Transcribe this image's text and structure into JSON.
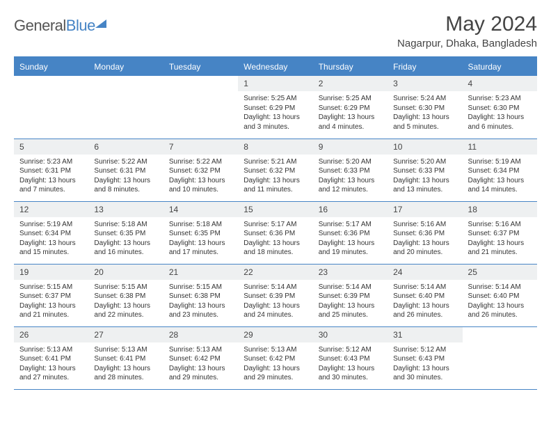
{
  "brand": {
    "part1": "General",
    "part2": "Blue"
  },
  "title": "May 2024",
  "location": "Nagarpur, Dhaka, Bangladesh",
  "colors": {
    "accent": "#4684c5",
    "header_bg": "#4684c5",
    "daybar_bg": "#eef0f1",
    "text": "#333333"
  },
  "weekdays": [
    "Sunday",
    "Monday",
    "Tuesday",
    "Wednesday",
    "Thursday",
    "Friday",
    "Saturday"
  ],
  "weeks": [
    [
      null,
      null,
      null,
      {
        "n": "1",
        "sunrise": "5:25 AM",
        "sunset": "6:29 PM",
        "daylight": "13 hours and 3 minutes."
      },
      {
        "n": "2",
        "sunrise": "5:25 AM",
        "sunset": "6:29 PM",
        "daylight": "13 hours and 4 minutes."
      },
      {
        "n": "3",
        "sunrise": "5:24 AM",
        "sunset": "6:30 PM",
        "daylight": "13 hours and 5 minutes."
      },
      {
        "n": "4",
        "sunrise": "5:23 AM",
        "sunset": "6:30 PM",
        "daylight": "13 hours and 6 minutes."
      }
    ],
    [
      {
        "n": "5",
        "sunrise": "5:23 AM",
        "sunset": "6:31 PM",
        "daylight": "13 hours and 7 minutes."
      },
      {
        "n": "6",
        "sunrise": "5:22 AM",
        "sunset": "6:31 PM",
        "daylight": "13 hours and 8 minutes."
      },
      {
        "n": "7",
        "sunrise": "5:22 AM",
        "sunset": "6:32 PM",
        "daylight": "13 hours and 10 minutes."
      },
      {
        "n": "8",
        "sunrise": "5:21 AM",
        "sunset": "6:32 PM",
        "daylight": "13 hours and 11 minutes."
      },
      {
        "n": "9",
        "sunrise": "5:20 AM",
        "sunset": "6:33 PM",
        "daylight": "13 hours and 12 minutes."
      },
      {
        "n": "10",
        "sunrise": "5:20 AM",
        "sunset": "6:33 PM",
        "daylight": "13 hours and 13 minutes."
      },
      {
        "n": "11",
        "sunrise": "5:19 AM",
        "sunset": "6:34 PM",
        "daylight": "13 hours and 14 minutes."
      }
    ],
    [
      {
        "n": "12",
        "sunrise": "5:19 AM",
        "sunset": "6:34 PM",
        "daylight": "13 hours and 15 minutes."
      },
      {
        "n": "13",
        "sunrise": "5:18 AM",
        "sunset": "6:35 PM",
        "daylight": "13 hours and 16 minutes."
      },
      {
        "n": "14",
        "sunrise": "5:18 AM",
        "sunset": "6:35 PM",
        "daylight": "13 hours and 17 minutes."
      },
      {
        "n": "15",
        "sunrise": "5:17 AM",
        "sunset": "6:36 PM",
        "daylight": "13 hours and 18 minutes."
      },
      {
        "n": "16",
        "sunrise": "5:17 AM",
        "sunset": "6:36 PM",
        "daylight": "13 hours and 19 minutes."
      },
      {
        "n": "17",
        "sunrise": "5:16 AM",
        "sunset": "6:36 PM",
        "daylight": "13 hours and 20 minutes."
      },
      {
        "n": "18",
        "sunrise": "5:16 AM",
        "sunset": "6:37 PM",
        "daylight": "13 hours and 21 minutes."
      }
    ],
    [
      {
        "n": "19",
        "sunrise": "5:15 AM",
        "sunset": "6:37 PM",
        "daylight": "13 hours and 21 minutes."
      },
      {
        "n": "20",
        "sunrise": "5:15 AM",
        "sunset": "6:38 PM",
        "daylight": "13 hours and 22 minutes."
      },
      {
        "n": "21",
        "sunrise": "5:15 AM",
        "sunset": "6:38 PM",
        "daylight": "13 hours and 23 minutes."
      },
      {
        "n": "22",
        "sunrise": "5:14 AM",
        "sunset": "6:39 PM",
        "daylight": "13 hours and 24 minutes."
      },
      {
        "n": "23",
        "sunrise": "5:14 AM",
        "sunset": "6:39 PM",
        "daylight": "13 hours and 25 minutes."
      },
      {
        "n": "24",
        "sunrise": "5:14 AM",
        "sunset": "6:40 PM",
        "daylight": "13 hours and 26 minutes."
      },
      {
        "n": "25",
        "sunrise": "5:14 AM",
        "sunset": "6:40 PM",
        "daylight": "13 hours and 26 minutes."
      }
    ],
    [
      {
        "n": "26",
        "sunrise": "5:13 AM",
        "sunset": "6:41 PM",
        "daylight": "13 hours and 27 minutes."
      },
      {
        "n": "27",
        "sunrise": "5:13 AM",
        "sunset": "6:41 PM",
        "daylight": "13 hours and 28 minutes."
      },
      {
        "n": "28",
        "sunrise": "5:13 AM",
        "sunset": "6:42 PM",
        "daylight": "13 hours and 29 minutes."
      },
      {
        "n": "29",
        "sunrise": "5:13 AM",
        "sunset": "6:42 PM",
        "daylight": "13 hours and 29 minutes."
      },
      {
        "n": "30",
        "sunrise": "5:12 AM",
        "sunset": "6:43 PM",
        "daylight": "13 hours and 30 minutes."
      },
      {
        "n": "31",
        "sunrise": "5:12 AM",
        "sunset": "6:43 PM",
        "daylight": "13 hours and 30 minutes."
      },
      null
    ]
  ],
  "labels": {
    "sunrise": "Sunrise:",
    "sunset": "Sunset:",
    "daylight": "Daylight:"
  }
}
